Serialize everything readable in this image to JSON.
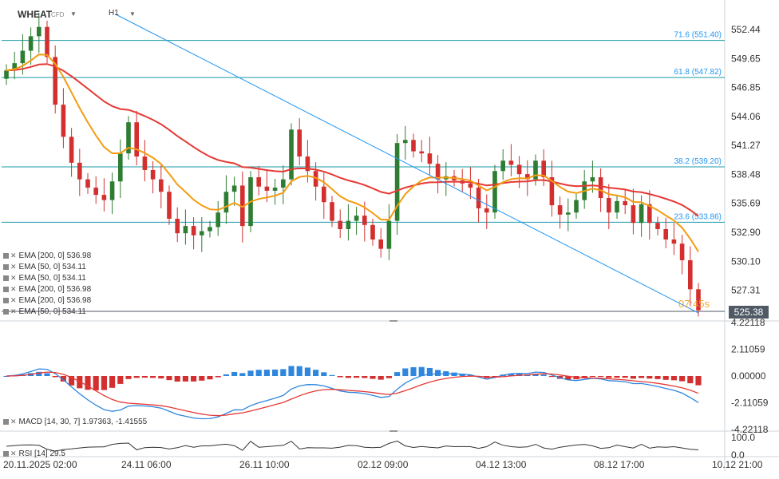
{
  "header": {
    "symbol": "WHEAT",
    "type": "CFD",
    "timeframe": "H1"
  },
  "current_price": "525.38",
  "countdown": "07:45s",
  "colors": {
    "up": "#2e7d32",
    "down": "#d32f2f",
    "ema200": "#e53935",
    "ema50": "#f39c12",
    "fib": "#1a9aa8",
    "trend": "#2196f3",
    "macd_pos": "#2e86de",
    "macd_neg": "#d32f2f",
    "macd_line": "#2e86de",
    "signal_line": "#e53935",
    "rsi": "#333333"
  },
  "indicators": [
    {
      "label": "EMA [200, 0] 536.98"
    },
    {
      "label": "EMA [50, 0] 534.11"
    },
    {
      "label": "EMA [50, 0] 534.11"
    },
    {
      "label": "EMA [200, 0] 536.98"
    },
    {
      "label": "EMA [200, 0] 536.98"
    },
    {
      "label": "EMA [50, 0] 534.11"
    }
  ],
  "macd_label": "MACD [14, 30, 7] 1.97363, -1.41555",
  "rsi_label": "RSI [14] 29.5",
  "chart_data": [
    {
      "type": "candlestick",
      "price_ticks": [
        "552.44",
        "549.65",
        "546.85",
        "544.06",
        "541.27",
        "538.48",
        "535.69",
        "532.90",
        "530.10",
        "527.31",
        "525.38"
      ],
      "ylim": [
        524.5,
        553.6
      ],
      "x_tick_labels": [
        "20.11.2025 02:00",
        "24.11 06:00",
        "26.11 10:00",
        "02.12 09:00",
        "04.12 13:00",
        "08.12 17:00",
        "10.12 21:00"
      ],
      "fib_levels": [
        {
          "label": "71.6 (551.40)",
          "value": 551.4
        },
        {
          "label": "61.8 (547.82)",
          "value": 547.82
        },
        {
          "label": "38.2 (539.20)",
          "value": 539.2
        },
        {
          "label": "23.6 (533.86)",
          "value": 533.86
        }
      ],
      "series": [
        {
          "values": [
            548.5,
            549.2,
            550.4,
            551.8,
            552.7,
            549.8,
            545.2,
            542.1,
            539.6,
            538.0,
            537.2,
            536.5,
            536.0,
            537.8,
            540.5,
            543.5,
            540.2,
            538.9,
            538.0,
            536.8,
            534.2,
            532.8,
            533.5,
            532.6,
            533.0,
            533.4,
            534.8,
            536.8,
            537.4,
            533.5,
            538.2,
            537.3,
            536.9,
            537.2,
            538.0,
            542.8,
            540.2,
            538.8,
            537.3,
            535.8,
            534.0,
            533.2,
            534.0,
            534.5,
            533.6,
            532.2,
            531.3,
            534.0,
            541.5,
            541.8,
            540.7,
            540.5,
            539.5,
            538.0,
            538.3,
            537.9,
            537.6,
            537.2,
            535.2,
            534.8,
            538.8,
            539.8,
            539.4,
            538.5,
            538.0,
            539.8,
            538.2,
            535.5,
            534.6,
            534.8,
            536.0,
            537.8,
            538.2,
            536.2,
            534.8,
            535.9,
            535.5,
            533.8,
            535.6,
            533.8,
            533.2,
            532.2,
            531.8,
            530.2,
            527.4,
            525.38
          ]
        }
      ]
    },
    {
      "type": "macd",
      "yticks": [
        "4.22118",
        "2.11059",
        "0.00000",
        "-2.11059",
        "-4.22118"
      ],
      "ylim": [
        -4.22118,
        4.22118
      ]
    },
    {
      "type": "rsi",
      "yticks": [
        "100.0",
        "0.0"
      ],
      "ylim": [
        0,
        100
      ],
      "last": 29.5
    }
  ]
}
